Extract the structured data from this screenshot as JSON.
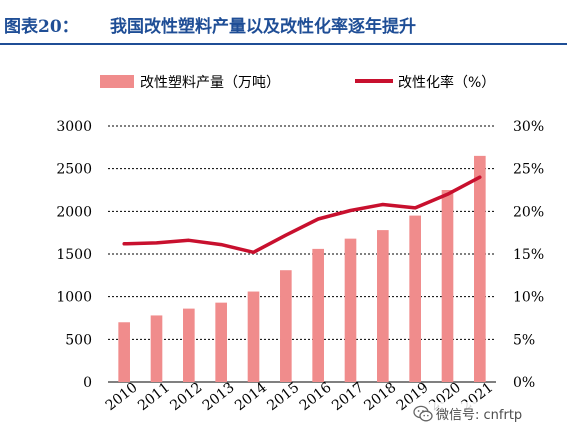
{
  "header": {
    "figure_label": "图表20：",
    "title": "我国改性塑料产量以及改性化率逐年提升"
  },
  "watermark": {
    "text": "微信号: cnfrtp",
    "icon": "wechat-icon"
  },
  "colors": {
    "bar": "#f08c8c",
    "line": "#c8102e",
    "grid": "#000000",
    "title": "#1f4e96"
  },
  "chart_data": {
    "type": "bar",
    "categories": [
      "2010",
      "2011",
      "2012",
      "2013",
      "2014",
      "2015",
      "2016",
      "2017",
      "2018",
      "2019",
      "2020",
      "2021"
    ],
    "series": [
      {
        "name": "改性塑料产量（万吨）",
        "type": "bar",
        "axis": "left",
        "values": [
          700,
          780,
          860,
          930,
          1060,
          1310,
          1560,
          1680,
          1780,
          1950,
          2250,
          2650
        ]
      },
      {
        "name": "改性化率（%）",
        "type": "line",
        "axis": "right",
        "values": [
          16.2,
          16.3,
          16.6,
          16.1,
          15.2,
          17.2,
          19.1,
          20.1,
          20.8,
          20.4,
          22.0,
          24.0
        ]
      }
    ],
    "y_left": {
      "ticks": [
        "0",
        "500",
        "1000",
        "1500",
        "2000",
        "2500",
        "3000"
      ],
      "range": [
        0,
        3000
      ]
    },
    "y_right": {
      "ticks": [
        "0%",
        "5%",
        "10%",
        "15%",
        "20%",
        "25%",
        "30%"
      ],
      "range": [
        0,
        30
      ]
    },
    "grid": true,
    "legend_position": "top"
  }
}
